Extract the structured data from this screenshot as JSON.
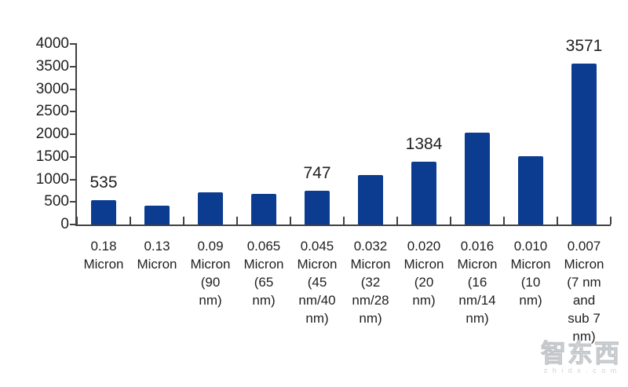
{
  "chart_data": {
    "type": "bar",
    "title": "",
    "xlabel": "",
    "ylabel": "",
    "categories": [
      "0.18\nMicron",
      "0.13\nMicron",
      "0.09\nMicron\n(90\nnm)",
      "0.065\nMicron\n(65\nnm)",
      "0.045\nMicron\n(45\nnm/40\nnm)",
      "0.032\nMicron\n(32\nnm/28\nnm)",
      "0.020\nMicron\n(20\nnm)",
      "0.016\nMicron\n(16\nnm/14\nnm)",
      "0.010\nMicron\n(10\nnm)",
      "0.007\nMicron\n(7 nm\nand\nsub 7\nnm)"
    ],
    "values": [
      535,
      420,
      705,
      675,
      747,
      1100,
      1384,
      2030,
      1510,
      3571
    ],
    "data_labels": [
      "535",
      "",
      "",
      "",
      "747",
      "",
      "1384",
      "",
      "",
      "3571"
    ],
    "ylim": [
      0,
      4000
    ],
    "yticks": [
      0,
      500,
      1000,
      1500,
      2000,
      2500,
      3000,
      3500,
      4000
    ],
    "grid": "off",
    "legend": "none",
    "bar_color": "#0b3c90",
    "axis_color": "#404040",
    "text_color": "#1f1f1f"
  },
  "watermark": {
    "logo_text": "智东西",
    "domain_text": "z h i d x . c o m"
  }
}
